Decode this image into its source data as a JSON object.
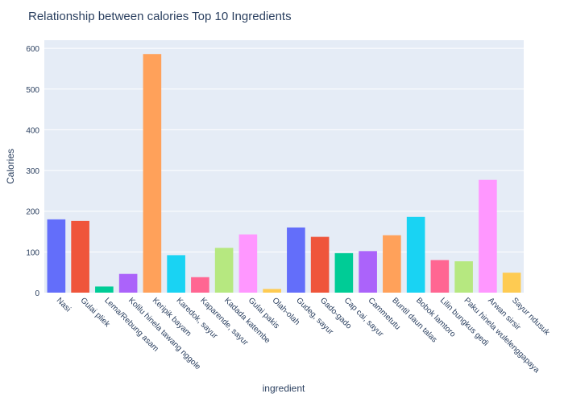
{
  "chart_data": {
    "type": "bar",
    "title": "Relationship between calories Top 10 Ingredients",
    "xlabel": "ingredient",
    "ylabel": "Calories",
    "ylim": [
      0,
      620
    ],
    "yticks": [
      0,
      100,
      200,
      300,
      400,
      500,
      600
    ],
    "grid": true,
    "categories": [
      "Nasi",
      "Gulai pliek",
      "Lema/Rebung asam",
      "Kolilu hinela tawang nggole",
      "Keripik bayam",
      "Karedok, sayur",
      "Kaparende, sayur",
      "Kadada katembe",
      "Gulai pakis",
      "Olah-olah",
      "Gudeg, sayur",
      "Gado-gado",
      "Cap cai, sayur",
      "Cammetutu",
      "Buntil daun talas",
      "Bobok lamtoro",
      "Lilin bungkus gedi",
      "Paku hinela wulelenggapaya",
      "Arwan sirsir",
      "Sayur ndusuk"
    ],
    "values": [
      180,
      176,
      15,
      46,
      586,
      92,
      38,
      110,
      143,
      9,
      160,
      137,
      97,
      102,
      141,
      186,
      80,
      77,
      277,
      49
    ],
    "colors": [
      "#636efa",
      "#EF553B",
      "#00cc96",
      "#ab63fa",
      "#FFA15A",
      "#19d3f3",
      "#FF6692",
      "#B6E880",
      "#FF97FF",
      "#FECB52",
      "#636efa",
      "#EF553B",
      "#00cc96",
      "#ab63fa",
      "#FFA15A",
      "#19d3f3",
      "#FF6692",
      "#B6E880",
      "#FF97FF",
      "#FECB52"
    ],
    "plot_bg": "#E5ECF6",
    "grid_color": "#ffffff",
    "text_color": "#2a3f5f"
  }
}
